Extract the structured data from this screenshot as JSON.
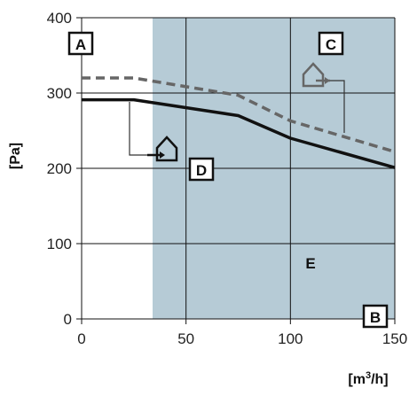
{
  "colors": {
    "background": "#ffffff",
    "region": "#b6cbd6",
    "grid": "#111111",
    "series_solid": "#111111",
    "series_dashed": "#666666",
    "label_white": "#ffffff"
  },
  "chart_data": {
    "type": "line",
    "title": "",
    "xlabel": "[m³/h]",
    "xlabel_base": "[m",
    "xlabel_sup": "3",
    "xlabel_tail": "/h]",
    "ylabel": "[Pa]",
    "xlim": [
      0,
      150
    ],
    "ylim": [
      0,
      400
    ],
    "xticks": [
      0,
      50,
      100,
      150
    ],
    "yticks": [
      0,
      100,
      200,
      300,
      400
    ],
    "grid": true,
    "shaded_region": {
      "x": [
        34,
        150
      ],
      "label": "E"
    },
    "series": [
      {
        "name": "C",
        "style": "dashed",
        "color": "#666666",
        "x": [
          0,
          25,
          75,
          100,
          150
        ],
        "y": [
          320,
          320,
          297,
          263,
          222
        ]
      },
      {
        "name": "D",
        "style": "solid",
        "color": "#111111",
        "x": [
          0,
          25,
          75,
          100,
          150
        ],
        "y": [
          291,
          291,
          270,
          240,
          201
        ]
      }
    ],
    "annotations": [
      {
        "text": "A",
        "boxed": true
      },
      {
        "text": "B",
        "boxed": true
      },
      {
        "text": "C",
        "boxed": true
      },
      {
        "text": "D",
        "boxed": true
      },
      {
        "text": "E",
        "boxed": false
      }
    ],
    "icons": [
      {
        "name": "house-outlet-icon",
        "series": "C"
      },
      {
        "name": "house-outlet-icon",
        "series": "D"
      }
    ]
  }
}
